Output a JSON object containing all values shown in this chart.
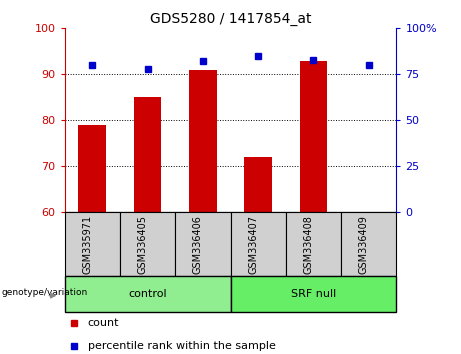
{
  "title": "GDS5280 / 1417854_at",
  "samples": [
    "GSM335971",
    "GSM336405",
    "GSM336406",
    "GSM336407",
    "GSM336408",
    "GSM336409"
  ],
  "count_values": [
    79,
    85,
    91,
    72,
    93,
    60
  ],
  "percentile_values": [
    80,
    78,
    82,
    85,
    83,
    80
  ],
  "ylim_left": [
    60,
    100
  ],
  "ylim_right": [
    0,
    100
  ],
  "yticks_left": [
    60,
    70,
    80,
    90,
    100
  ],
  "yticks_right": [
    0,
    25,
    50,
    75,
    100
  ],
  "ytick_labels_right": [
    "0",
    "25",
    "50",
    "75",
    "100%"
  ],
  "grid_lines": [
    70,
    80,
    90
  ],
  "bar_color": "#cc0000",
  "dot_color": "#0000cc",
  "left_axis_color": "#cc0000",
  "right_axis_color": "#0000cc",
  "group_control_color": "#90ee90",
  "group_srfnull_color": "#66ee66",
  "group_label_prefix": "genotype/variation",
  "legend_count_label": "count",
  "legend_percentile_label": "percentile rank within the sample",
  "bar_width": 0.5,
  "figsize": [
    4.61,
    3.54
  ],
  "dpi": 100
}
